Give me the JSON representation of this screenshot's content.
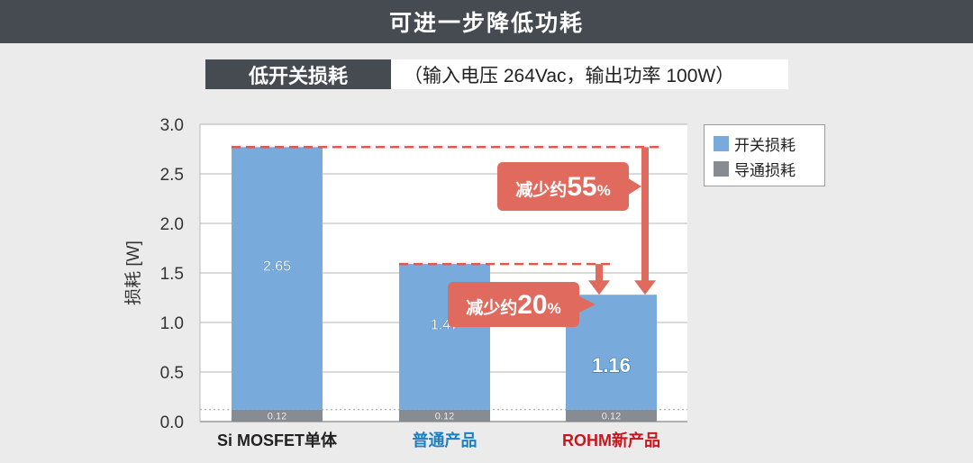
{
  "header": {
    "title": "可进一步降低功耗"
  },
  "subheader": {
    "label": "低开关损耗",
    "condition": "（输入电压 264Vac，输出功率 100W）"
  },
  "colors": {
    "switching": "#78aadc",
    "conduction": "#868c92",
    "callout": "#e06a5e",
    "dash": "#e2584c",
    "rohm_label": "#c8161e",
    "normal_label": "#1d7fc4"
  },
  "legend": {
    "switching_label": "开关损耗",
    "conduction_label": "导通损耗"
  },
  "callouts": {
    "big": {
      "text": "减少约",
      "number": "55",
      "unit": "%"
    },
    "small": {
      "text": "减少约",
      "number": "20",
      "unit": "%"
    }
  },
  "chart_data": {
    "type": "bar",
    "stacked": true,
    "categories": [
      "Si MOSFET单体",
      "普通产品",
      "ROHM新产品"
    ],
    "series": [
      {
        "name": "导通损耗",
        "values": [
          0.12,
          0.12,
          0.12
        ]
      },
      {
        "name": "开关损耗",
        "values": [
          2.65,
          1.47,
          1.16
        ]
      }
    ],
    "data_labels": {
      "switching": [
        "2.65",
        "1.47",
        "1.16"
      ],
      "conduction": [
        "0.12",
        "0.12",
        "0.12"
      ]
    },
    "ylabel": "损耗 [W]",
    "ylim": [
      0,
      3.0
    ],
    "yticks": [
      "0.0",
      "0.5",
      "1.0",
      "1.5",
      "2.0",
      "2.5",
      "3.0"
    ],
    "grid": true,
    "legend_position": "top-right"
  }
}
